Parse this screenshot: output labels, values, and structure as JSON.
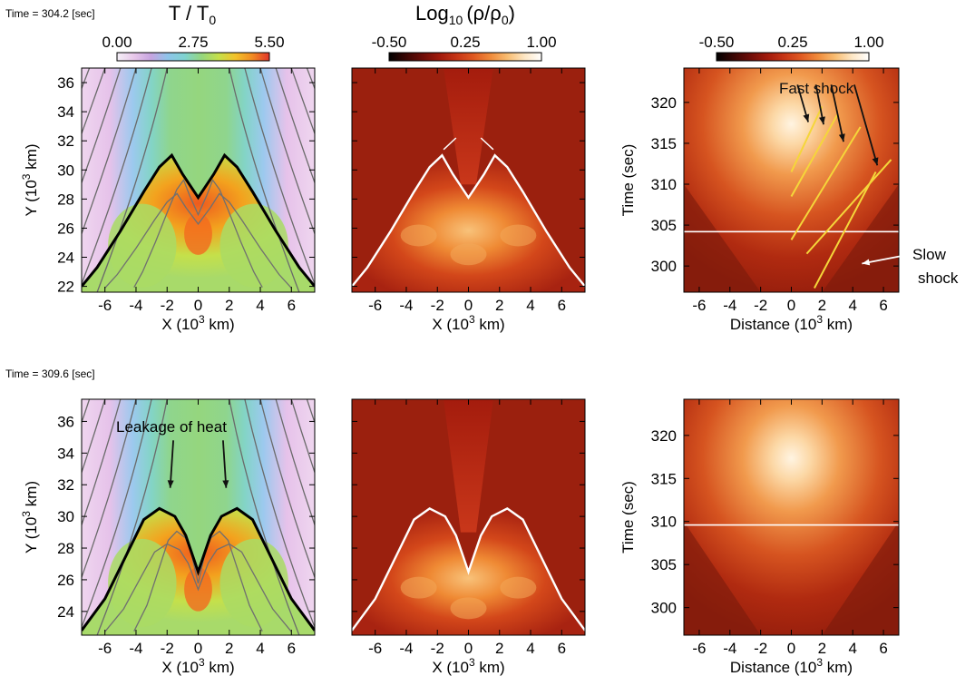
{
  "rows": [
    {
      "time_label": "Time = 304.2 [sec]"
    },
    {
      "time_label": "Time = 309.6 [sec]"
    }
  ],
  "colorbars": [
    {
      "title_main": "T / T",
      "title_sub": "0",
      "ticks": [
        "0.00",
        "2.75",
        "5.50"
      ],
      "range": [
        0.0,
        5.5
      ],
      "colors": [
        "#f4f0f7",
        "#e8c8ea",
        "#c7a4e0",
        "#8ec4ea",
        "#7fd3d0",
        "#95d67e",
        "#c5e04a",
        "#f3c22a",
        "#f18a22",
        "#e2342a"
      ]
    },
    {
      "title_main": "Log",
      "title_base": "10",
      "title_arg": "(ρ/ρ",
      "title_arg_sub": "0",
      "title_close": ")",
      "ticks": [
        "-0.50",
        "0.25",
        "1.00"
      ],
      "range": [
        -0.5,
        1.0
      ],
      "colors": [
        "#000000",
        "#3a0604",
        "#6e0d08",
        "#a11a0c",
        "#c63516",
        "#e05a22",
        "#f08b3b",
        "#f8bd72",
        "#fde6c4",
        "#ffffff"
      ]
    },
    {
      "ticks": [
        "-0.50",
        "0.25",
        "1.00"
      ],
      "range": [
        -0.5,
        1.0
      ]
    }
  ],
  "annotations": {
    "fast_shock": "Fast shock",
    "slow_shock_1": "Slow",
    "slow_shock_2": "shock",
    "leakage": "Leakage of heat"
  },
  "chart_data": [
    {
      "type": "heatmap",
      "panel": "temperature",
      "time_sec": 304.2,
      "xlabel_main": "X (10",
      "xlabel_exp": "3",
      "xlabel_unit": " km)",
      "ylabel_main": "Y (10",
      "ylabel_exp": "3",
      "ylabel_unit": " km)",
      "xlim": [
        -7.5,
        7.5
      ],
      "ylim": [
        21.6,
        37.0
      ],
      "xticks": [
        "-6",
        "-4",
        "-2",
        "0",
        "2",
        "4",
        "6"
      ],
      "yticks": [
        "22",
        "24",
        "26",
        "28",
        "30",
        "32",
        "34",
        "36"
      ],
      "bold_contour": {
        "x": [
          -7.5,
          -6.5,
          -5,
          -3.5,
          -2.5,
          -1.7,
          -1,
          0,
          1,
          1.7,
          2.5,
          3.5,
          5,
          6.5,
          7.5
        ],
        "y": [
          22,
          23.3,
          25.8,
          28.5,
          30.2,
          31,
          29.7,
          28.1,
          29.7,
          31,
          30.2,
          28.5,
          25.8,
          23.3,
          22
        ]
      }
    },
    {
      "type": "heatmap",
      "panel": "density",
      "time_sec": 304.2,
      "xlabel_main": "X (10",
      "xlabel_exp": "3",
      "xlabel_unit": " km)",
      "xlim": [
        -7.5,
        7.5
      ],
      "ylim": [
        21.6,
        37.0
      ],
      "xticks": [
        "-6",
        "-4",
        "-2",
        "0",
        "2",
        "4",
        "6"
      ]
    },
    {
      "type": "heatmap",
      "panel": "time-distance",
      "time_sec": 304.2,
      "xlabel": "Distance (10",
      "xlabel_exp": "3",
      "xlabel_unit": " km)",
      "ylabel": "Time (sec)",
      "xlim": [
        -7,
        7
      ],
      "ylim": [
        296.8,
        324.2
      ],
      "xticks": [
        "-6",
        "-4",
        "-2",
        "0",
        "2",
        "4",
        "6"
      ],
      "yticks": [
        "300",
        "305",
        "310",
        "315",
        "320"
      ],
      "fast_shock_lines": [
        {
          "x": [
            0.0,
            2.0
          ],
          "y": [
            311.5,
            319.5
          ]
        },
        {
          "x": [
            0.0,
            3.0
          ],
          "y": [
            308.5,
            318.5
          ]
        },
        {
          "x": [
            0.0,
            4.5
          ],
          "y": [
            303.2,
            317.0
          ]
        },
        {
          "x": [
            1.0,
            6.5
          ],
          "y": [
            301.5,
            313.0
          ]
        }
      ],
      "slow_shock_line": {
        "x": [
          1.5,
          5.5
        ],
        "y": [
          297.3,
          311.5
        ]
      }
    },
    {
      "type": "heatmap",
      "panel": "temperature",
      "time_sec": 309.6,
      "xlabel_main": "X (10",
      "xlabel_exp": "3",
      "xlabel_unit": " km)",
      "ylabel_main": "Y (10",
      "ylabel_exp": "3",
      "ylabel_unit": " km)",
      "xlim": [
        -7.5,
        7.5
      ],
      "ylim": [
        22.5,
        37.4
      ],
      "xticks": [
        "-6",
        "-4",
        "-2",
        "0",
        "2",
        "4",
        "6"
      ],
      "yticks": [
        "24",
        "26",
        "28",
        "30",
        "32",
        "34",
        "36"
      ],
      "bold_contour": {
        "x": [
          -7.5,
          -6,
          -4.5,
          -3.5,
          -2.5,
          -1.5,
          -0.8,
          0,
          0.8,
          1.5,
          2.5,
          3.5,
          4.5,
          6,
          7.5
        ],
        "y": [
          22.8,
          24.8,
          27.8,
          29.8,
          30.5,
          30.0,
          28.8,
          26.5,
          28.8,
          30.0,
          30.5,
          29.8,
          27.8,
          24.8,
          22.8
        ]
      }
    },
    {
      "type": "heatmap",
      "panel": "density",
      "time_sec": 309.6,
      "xlabel_main": "X (10",
      "xlabel_exp": "3",
      "xlabel_unit": " km)",
      "xlim": [
        -7.5,
        7.5
      ],
      "ylim": [
        22.5,
        37.4
      ],
      "xticks": [
        "-6",
        "-4",
        "-2",
        "0",
        "2",
        "4",
        "6"
      ]
    },
    {
      "type": "heatmap",
      "panel": "time-distance",
      "time_sec": 309.6,
      "xlabel": "Distance (10",
      "xlabel_exp": "3",
      "xlabel_unit": " km)",
      "ylabel": "Time (sec)",
      "xlim": [
        -7,
        7
      ],
      "ylim": [
        296.8,
        324.2
      ],
      "xticks": [
        "-6",
        "-4",
        "-2",
        "0",
        "2",
        "4",
        "6"
      ],
      "yticks": [
        "300",
        "305",
        "310",
        "315",
        "320"
      ]
    }
  ]
}
